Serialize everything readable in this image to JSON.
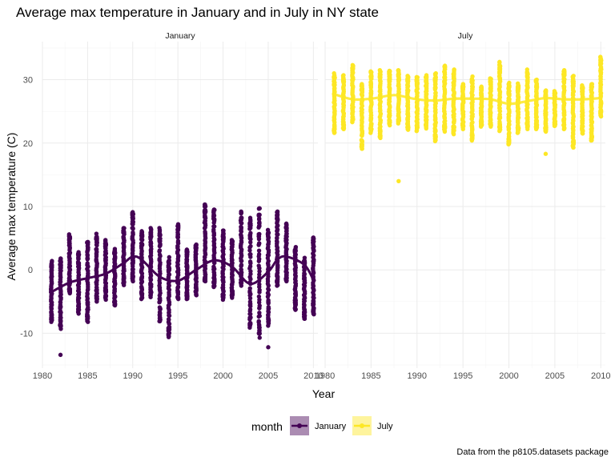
{
  "chart_data": {
    "type": "scatter",
    "title": "Average max temperature in January and in July in NY state",
    "xlabel": "Year",
    "ylabel": "Average max temperature (C)",
    "caption": "Data from the p8105.datasets package",
    "xlim": [
      1980,
      2010.5
    ],
    "ylim": [
      -15.5,
      36
    ],
    "x_ticks": [
      1980,
      1985,
      1990,
      1995,
      2000,
      2005,
      2010
    ],
    "y_ticks": [
      -10,
      0,
      10,
      20,
      30
    ],
    "grid": true,
    "legend": {
      "title": "month",
      "position": "bottom",
      "entries": [
        "January",
        "July"
      ]
    },
    "facets": [
      {
        "label": "January",
        "color": "#440154",
        "points_per_year": 60,
        "years": [
          1981,
          1982,
          1983,
          1984,
          1985,
          1986,
          1987,
          1988,
          1989,
          1990,
          1991,
          1992,
          1993,
          1994,
          1995,
          1996,
          1997,
          1998,
          1999,
          2000,
          2001,
          2002,
          2003,
          2004,
          2005,
          2006,
          2007,
          2008,
          2009,
          2010
        ],
        "min": [
          -8.2,
          -9.3,
          -3.7,
          -6.9,
          -8.2,
          -5.0,
          -4.7,
          -5.6,
          -2.4,
          -1.8,
          -4.6,
          -4.3,
          -8.1,
          -10.6,
          -4.6,
          -4.6,
          -4.0,
          -1.8,
          -2.7,
          -4.7,
          -4.4,
          -2.5,
          -9.1,
          -10.7,
          -8.8,
          -2.5,
          -1.8,
          -6.3,
          -7.7,
          -7.0
        ],
        "max": [
          1.4,
          1.8,
          5.6,
          2.8,
          4.4,
          5.7,
          4.7,
          3.3,
          6.6,
          9.1,
          6.1,
          6.6,
          6.6,
          2.0,
          7.2,
          3.2,
          4.0,
          10.3,
          9.5,
          6.2,
          4.7,
          9.2,
          8.2,
          9.7,
          6.3,
          9.2,
          7.3,
          3.6,
          1.9,
          5.1
        ],
        "outliers": [
          [
            1982,
            -13.4
          ],
          [
            1993,
            -8.1
          ],
          [
            2005,
            -12.2
          ],
          [
            2009,
            -7.7
          ],
          [
            2010,
            -6.9
          ],
          [
            1998,
            10.3
          ],
          [
            1999,
            9.5
          ],
          [
            2004,
            9.7
          ],
          [
            2004,
            4.2
          ],
          [
            2000,
            6.2
          ]
        ],
        "smooth": [
          [
            1981,
            -3.5
          ],
          [
            1983,
            -2.0
          ],
          [
            1985,
            -1.3
          ],
          [
            1987,
            -0.6
          ],
          [
            1989,
            1.1
          ],
          [
            1990,
            2.1
          ],
          [
            1991,
            1.6
          ],
          [
            1993,
            -1.1
          ],
          [
            1995,
            -1.7
          ],
          [
            1997,
            0.0
          ],
          [
            1999,
            1.5
          ],
          [
            2001,
            0.5
          ],
          [
            2003,
            -2.2
          ],
          [
            2005,
            -0.3
          ],
          [
            2006,
            1.6
          ],
          [
            2007,
            2.1
          ],
          [
            2009,
            0.8
          ],
          [
            2010,
            -1.6
          ]
        ]
      },
      {
        "label": "July",
        "color": "#fde725",
        "points_per_year": 60,
        "years": [
          1981,
          1982,
          1983,
          1984,
          1985,
          1986,
          1987,
          1988,
          1989,
          1990,
          1991,
          1992,
          1993,
          1994,
          1995,
          1996,
          1997,
          1998,
          1999,
          2000,
          2001,
          2002,
          2003,
          2004,
          2005,
          2006,
          2007,
          2008,
          2009,
          2010
        ],
        "min": [
          21.6,
          22.2,
          23.3,
          19.1,
          21.6,
          20.8,
          22.8,
          23.1,
          22.1,
          21.9,
          22.3,
          20.3,
          21.8,
          21.4,
          22.2,
          20.4,
          22.6,
          22.6,
          21.9,
          19.8,
          21.6,
          22.2,
          22.2,
          21.8,
          22.7,
          22.2,
          19.3,
          21.5,
          20.4,
          24.2
        ],
        "max": [
          31.0,
          30.7,
          32.3,
          29.3,
          31.3,
          31.5,
          31.4,
          31.5,
          30.6,
          30.4,
          30.7,
          31.0,
          32.2,
          31.6,
          29.3,
          30.5,
          28.9,
          30.2,
          32.8,
          29.5,
          29.4,
          31.6,
          30.0,
          28.3,
          28.2,
          31.5,
          30.6,
          29.1,
          29.3,
          33.6
        ],
        "outliers": [
          [
            1988,
            14.0
          ],
          [
            2004,
            18.3
          ],
          [
            2007,
            19.3
          ],
          [
            1984,
            19.1
          ]
        ],
        "smooth": [
          [
            1981,
            27.7
          ],
          [
            1983,
            26.9
          ],
          [
            1985,
            27.0
          ],
          [
            1987,
            27.5
          ],
          [
            1988,
            27.5
          ],
          [
            1990,
            26.9
          ],
          [
            1992,
            26.7
          ],
          [
            1994,
            27.0
          ],
          [
            1996,
            27.0
          ],
          [
            1998,
            26.9
          ],
          [
            2000,
            26.2
          ],
          [
            2002,
            26.6
          ],
          [
            2004,
            27.1
          ],
          [
            2006,
            26.9
          ],
          [
            2008,
            26.9
          ],
          [
            2010,
            27.1
          ]
        ]
      }
    ]
  }
}
